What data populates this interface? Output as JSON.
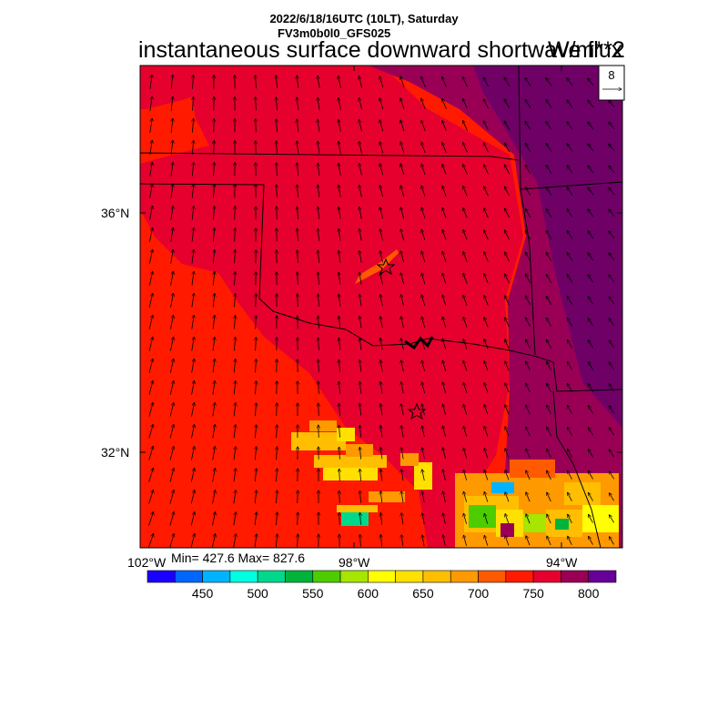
{
  "header": {
    "date_line": "2022/6/18/16UTC (10LT), Saturday",
    "model_line": "FV3m0b0l0_GFS025",
    "title": "instantaneous surface downward shortwave flux",
    "units": "W/m**2"
  },
  "reference_vector": {
    "label": "8"
  },
  "axes": {
    "lat_labels": [
      "36°N",
      "32°N"
    ],
    "lon_labels": [
      "102°W",
      "98°W",
      "94°W"
    ]
  },
  "stats": {
    "text": "Min= 427.6 Max= 827.6"
  },
  "colorbar": {
    "labels": [
      "450",
      "500",
      "550",
      "600",
      "650",
      "700",
      "750",
      "800"
    ],
    "colors": [
      "#1a00ff",
      "#0066ff",
      "#00b3ff",
      "#00ffe0",
      "#00d98c",
      "#00b33a",
      "#4dcc00",
      "#a6e600",
      "#ffff00",
      "#ffe000",
      "#ffbf00",
      "#ff9900",
      "#ff5a00",
      "#ff1a00",
      "#e6002e",
      "#990055",
      "#660099"
    ]
  },
  "map_colors": {
    "west": "#ff1a00",
    "central": "#e6002e",
    "east": "#990055",
    "far_east": "#6f0066"
  }
}
